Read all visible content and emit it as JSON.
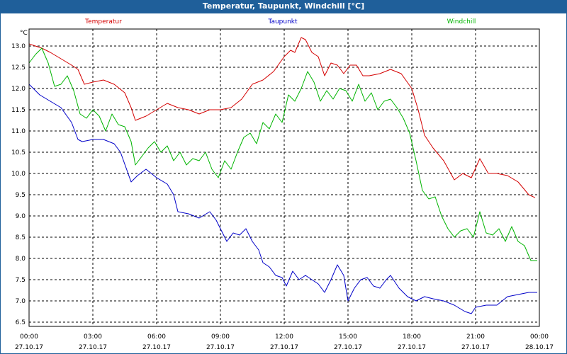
{
  "window": {
    "title": "Temperatur, Taupunkt, Windchill [°C]"
  },
  "chart_data": {
    "type": "line",
    "title": "Temperatur, Taupunkt, Windchill [°C]",
    "ylabel": "°C",
    "xlabel": "",
    "ylim": [
      6.4,
      13.4
    ],
    "xlim": [
      0,
      24
    ],
    "yticks": [
      6.5,
      7.0,
      7.5,
      8.0,
      8.5,
      9.0,
      9.5,
      10.0,
      10.5,
      11.0,
      11.5,
      12.0,
      12.5,
      13.0
    ],
    "xticks": [
      {
        "x": 0,
        "time": "00:00",
        "date": "27.10.17"
      },
      {
        "x": 3,
        "time": "03:00",
        "date": "27.10.17"
      },
      {
        "x": 6,
        "time": "06:00",
        "date": "27.10.17"
      },
      {
        "x": 9,
        "time": "09:00",
        "date": "27.10.17"
      },
      {
        "x": 12,
        "time": "12:00",
        "date": "27.10.17"
      },
      {
        "x": 15,
        "time": "15:00",
        "date": "27.10.17"
      },
      {
        "x": 18,
        "time": "18:00",
        "date": "27.10.17"
      },
      {
        "x": 21,
        "time": "21:00",
        "date": "27.10.17"
      },
      {
        "x": 24,
        "time": "00:00",
        "date": "28.10.17"
      }
    ],
    "grid": true,
    "legend": "top",
    "series": [
      {
        "name": "Temperatur",
        "color": "#d40000",
        "points": [
          [
            0,
            13.05
          ],
          [
            0.3,
            13.0
          ],
          [
            0.6,
            12.95
          ],
          [
            1.0,
            12.85
          ],
          [
            1.5,
            12.7
          ],
          [
            2.0,
            12.55
          ],
          [
            2.3,
            12.45
          ],
          [
            2.6,
            12.1
          ],
          [
            3.0,
            12.15
          ],
          [
            3.5,
            12.2
          ],
          [
            4.0,
            12.1
          ],
          [
            4.5,
            11.9
          ],
          [
            4.8,
            11.55
          ],
          [
            5.0,
            11.25
          ],
          [
            5.5,
            11.35
          ],
          [
            6.0,
            11.5
          ],
          [
            6.5,
            11.65
          ],
          [
            7.0,
            11.55
          ],
          [
            7.5,
            11.5
          ],
          [
            8.0,
            11.4
          ],
          [
            8.5,
            11.5
          ],
          [
            9.0,
            11.5
          ],
          [
            9.5,
            11.55
          ],
          [
            10.0,
            11.75
          ],
          [
            10.5,
            12.1
          ],
          [
            11.0,
            12.2
          ],
          [
            11.5,
            12.4
          ],
          [
            12.0,
            12.75
          ],
          [
            12.3,
            12.9
          ],
          [
            12.5,
            12.85
          ],
          [
            12.8,
            13.2
          ],
          [
            13.0,
            13.15
          ],
          [
            13.3,
            12.85
          ],
          [
            13.6,
            12.75
          ],
          [
            13.9,
            12.3
          ],
          [
            14.2,
            12.6
          ],
          [
            14.5,
            12.55
          ],
          [
            14.8,
            12.35
          ],
          [
            15.1,
            12.55
          ],
          [
            15.4,
            12.55
          ],
          [
            15.7,
            12.3
          ],
          [
            16.0,
            12.3
          ],
          [
            16.5,
            12.35
          ],
          [
            17.0,
            12.45
          ],
          [
            17.5,
            12.35
          ],
          [
            18.0,
            12.0
          ],
          [
            18.3,
            11.5
          ],
          [
            18.6,
            10.9
          ],
          [
            19.0,
            10.6
          ],
          [
            19.5,
            10.3
          ],
          [
            20.0,
            9.85
          ],
          [
            20.4,
            10.0
          ],
          [
            20.8,
            9.9
          ],
          [
            21.2,
            10.35
          ],
          [
            21.6,
            10.0
          ],
          [
            22.0,
            10.0
          ],
          [
            22.5,
            9.95
          ],
          [
            23.0,
            9.8
          ],
          [
            23.5,
            9.5
          ],
          [
            23.8,
            9.43
          ]
        ]
      },
      {
        "name": "Taupunkt",
        "color": "#0000c8",
        "points": [
          [
            0,
            12.1
          ],
          [
            0.5,
            11.85
          ],
          [
            1.0,
            11.7
          ],
          [
            1.5,
            11.55
          ],
          [
            2.0,
            11.2
          ],
          [
            2.3,
            10.8
          ],
          [
            2.5,
            10.75
          ],
          [
            3.0,
            10.8
          ],
          [
            3.5,
            10.8
          ],
          [
            4.0,
            10.7
          ],
          [
            4.3,
            10.5
          ],
          [
            4.8,
            9.8
          ],
          [
            5.1,
            9.95
          ],
          [
            5.5,
            10.1
          ],
          [
            6.0,
            9.9
          ],
          [
            6.5,
            9.75
          ],
          [
            6.8,
            9.5
          ],
          [
            7.0,
            9.1
          ],
          [
            7.5,
            9.05
          ],
          [
            8.0,
            8.95
          ],
          [
            8.5,
            9.1
          ],
          [
            8.8,
            8.9
          ],
          [
            9.0,
            8.7
          ],
          [
            9.3,
            8.4
          ],
          [
            9.6,
            8.6
          ],
          [
            9.9,
            8.55
          ],
          [
            10.2,
            8.7
          ],
          [
            10.5,
            8.4
          ],
          [
            10.8,
            8.2
          ],
          [
            11.0,
            7.9
          ],
          [
            11.3,
            7.8
          ],
          [
            11.6,
            7.6
          ],
          [
            11.9,
            7.55
          ],
          [
            12.1,
            7.35
          ],
          [
            12.4,
            7.7
          ],
          [
            12.7,
            7.5
          ],
          [
            13.0,
            7.6
          ],
          [
            13.3,
            7.5
          ],
          [
            13.6,
            7.4
          ],
          [
            13.9,
            7.2
          ],
          [
            14.2,
            7.5
          ],
          [
            14.5,
            7.85
          ],
          [
            14.8,
            7.6
          ],
          [
            15.0,
            7.0
          ],
          [
            15.3,
            7.3
          ],
          [
            15.6,
            7.5
          ],
          [
            15.9,
            7.55
          ],
          [
            16.2,
            7.35
          ],
          [
            16.5,
            7.3
          ],
          [
            16.8,
            7.5
          ],
          [
            17.0,
            7.6
          ],
          [
            17.4,
            7.3
          ],
          [
            17.8,
            7.1
          ],
          [
            18.2,
            7.0
          ],
          [
            18.6,
            7.1
          ],
          [
            19.0,
            7.05
          ],
          [
            19.5,
            7.0
          ],
          [
            20.0,
            6.9
          ],
          [
            20.5,
            6.75
          ],
          [
            20.8,
            6.7
          ],
          [
            21.0,
            6.85
          ],
          [
            21.5,
            6.9
          ],
          [
            22.0,
            6.9
          ],
          [
            22.5,
            7.1
          ],
          [
            23.0,
            7.15
          ],
          [
            23.5,
            7.2
          ],
          [
            23.9,
            7.2
          ]
        ]
      },
      {
        "name": "Windchill",
        "color": "#00b400",
        "points": [
          [
            0,
            12.6
          ],
          [
            0.3,
            12.8
          ],
          [
            0.6,
            12.95
          ],
          [
            0.9,
            12.6
          ],
          [
            1.2,
            12.05
          ],
          [
            1.5,
            12.1
          ],
          [
            1.8,
            12.3
          ],
          [
            2.1,
            11.95
          ],
          [
            2.4,
            11.4
          ],
          [
            2.7,
            11.3
          ],
          [
            3.0,
            11.5
          ],
          [
            3.3,
            11.35
          ],
          [
            3.6,
            11.0
          ],
          [
            3.9,
            11.4
          ],
          [
            4.2,
            11.15
          ],
          [
            4.5,
            11.1
          ],
          [
            4.8,
            10.75
          ],
          [
            5.0,
            10.2
          ],
          [
            5.3,
            10.4
          ],
          [
            5.6,
            10.6
          ],
          [
            5.9,
            10.75
          ],
          [
            6.2,
            10.5
          ],
          [
            6.5,
            10.65
          ],
          [
            6.8,
            10.3
          ],
          [
            7.1,
            10.5
          ],
          [
            7.4,
            10.2
          ],
          [
            7.7,
            10.35
          ],
          [
            8.0,
            10.3
          ],
          [
            8.3,
            10.5
          ],
          [
            8.6,
            10.1
          ],
          [
            8.9,
            9.9
          ],
          [
            9.2,
            10.3
          ],
          [
            9.5,
            10.1
          ],
          [
            9.8,
            10.5
          ],
          [
            10.1,
            10.85
          ],
          [
            10.4,
            10.95
          ],
          [
            10.7,
            10.7
          ],
          [
            11.0,
            11.2
          ],
          [
            11.3,
            11.05
          ],
          [
            11.6,
            11.4
          ],
          [
            11.9,
            11.2
          ],
          [
            12.2,
            11.85
          ],
          [
            12.5,
            11.7
          ],
          [
            12.8,
            12.0
          ],
          [
            13.1,
            12.4
          ],
          [
            13.4,
            12.15
          ],
          [
            13.7,
            11.7
          ],
          [
            14.0,
            11.95
          ],
          [
            14.3,
            11.75
          ],
          [
            14.6,
            12.0
          ],
          [
            14.9,
            11.95
          ],
          [
            15.2,
            11.7
          ],
          [
            15.5,
            12.1
          ],
          [
            15.8,
            11.7
          ],
          [
            16.1,
            11.9
          ],
          [
            16.4,
            11.5
          ],
          [
            16.7,
            11.7
          ],
          [
            17.0,
            11.75
          ],
          [
            17.3,
            11.55
          ],
          [
            17.6,
            11.3
          ],
          [
            17.9,
            10.95
          ],
          [
            18.2,
            10.3
          ],
          [
            18.5,
            9.6
          ],
          [
            18.8,
            9.4
          ],
          [
            19.1,
            9.45
          ],
          [
            19.4,
            9.0
          ],
          [
            19.7,
            8.7
          ],
          [
            20.0,
            8.5
          ],
          [
            20.3,
            8.65
          ],
          [
            20.6,
            8.7
          ],
          [
            20.9,
            8.5
          ],
          [
            21.2,
            9.1
          ],
          [
            21.5,
            8.6
          ],
          [
            21.8,
            8.55
          ],
          [
            22.1,
            8.7
          ],
          [
            22.4,
            8.4
          ],
          [
            22.7,
            8.75
          ],
          [
            23.0,
            8.4
          ],
          [
            23.3,
            8.3
          ],
          [
            23.6,
            7.95
          ],
          [
            23.9,
            7.95
          ]
        ]
      }
    ]
  }
}
